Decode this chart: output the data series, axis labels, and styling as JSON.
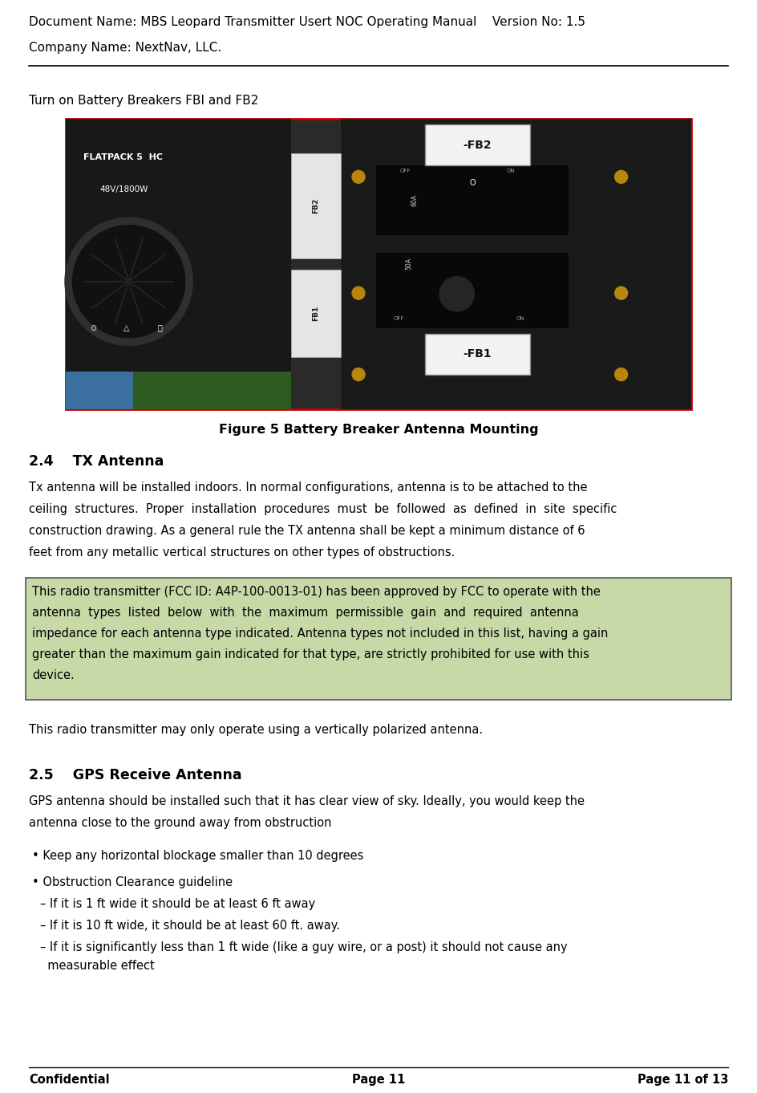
{
  "header_line1": "Document Name: MBS Leopard Transmitter Usert NOC Operating Manual    Version No: 1.5",
  "header_line2": "Company Name: NextNav, LLC.",
  "separator_color": "#000000",
  "body_instruction": "Turn on Battery Breakers FBI and FB2",
  "figure_caption": "Figure 5 Battery Breaker Antenna Mounting",
  "section_24_title": "2.4    TX Antenna",
  "section_24_lines": [
    "Tx antenna will be installed indoors. In normal configurations, antenna is to be attached to the",
    "ceiling  structures.  Proper  installation  procedures  must  be  followed  as  defined  in  site  specific",
    "construction drawing. As a general rule the TX antenna shall be kept a minimum distance of 6",
    "feet from any metallic vertical structures on other types of obstructions."
  ],
  "highlight_bg": "#c8d9a8",
  "highlight_border": "#555555",
  "hl_lines": [
    "This radio transmitter (FCC ID: A4P-100-0013-01) has been approved by FCC to operate with the",
    "antenna  types  listed  below  with  the  maximum  permissible  gain  and  required  antenna",
    "impedance for each antenna type indicated. Antenna types not included in this list, having a gain",
    "greater than the maximum gain indicated for that type, are strictly prohibited for use with this",
    "device."
  ],
  "polarized_text": "This radio transmitter may only operate using a vertically polarized antenna.",
  "section_25_title": "2.5    GPS Receive Antenna",
  "gps_lines": [
    "GPS antenna should be installed such that it has clear view of sky. Ideally, you would keep the",
    "antenna close to the ground away from obstruction"
  ],
  "bullet1": "• Keep any horizontal blockage smaller than 10 degrees",
  "bullet2": "• Obstruction Clearance guideline",
  "dash1": "– If it is 1 ft wide it should be at least 6 ft away",
  "dash2": "– If it is 10 ft wide, it should be at least 60 ft. away.",
  "dash3a": "– If it is significantly less than 1 ft wide (like a guy wire, or a post) it should not cause any",
  "dash3b": "  measurable effect",
  "footer_left": "Confidential",
  "footer_center": "Page 11",
  "footer_right": "Page 11 of 13",
  "page_bg": "#ffffff",
  "text_color": "#000000"
}
